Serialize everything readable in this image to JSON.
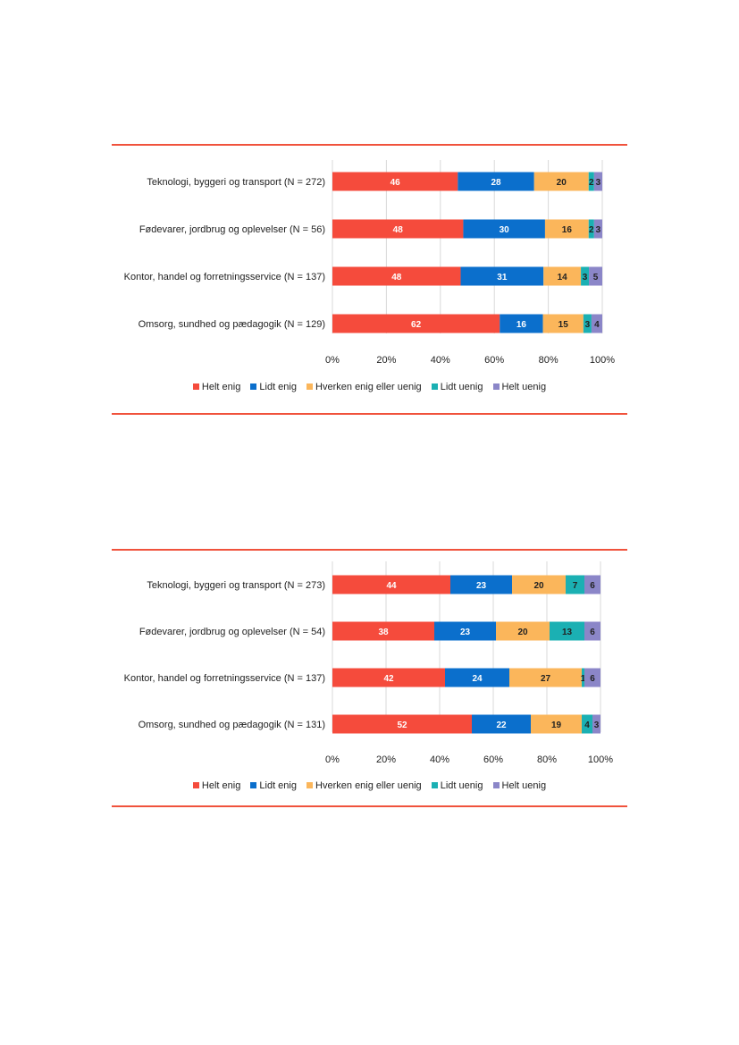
{
  "legend": [
    {
      "label": "Helt enig",
      "color": "#f54b3c"
    },
    {
      "label": "Lidt enig",
      "color": "#0b6fcc"
    },
    {
      "label": "Hverken enig eller uenig",
      "color": "#fbb65b"
    },
    {
      "label": "Lidt uenig",
      "color": "#1bb0b3"
    },
    {
      "label": "Helt uenig",
      "color": "#8b86c8"
    }
  ],
  "chart_data": [
    {
      "type": "bar",
      "orientation": "horizontal",
      "stacked": true,
      "categories": [
        "Teknologi, byggeri og transport (N = 272)",
        "Fødevarer, jordbrug og oplevelser (N = 56)",
        "Kontor, handel og forretningsservice (N = 137)",
        "Omsorg, sundhed og pædagogik (N = 129)"
      ],
      "series": [
        {
          "name": "Helt enig",
          "values": [
            46,
            48,
            48,
            62
          ]
        },
        {
          "name": "Lidt enig",
          "values": [
            28,
            30,
            31,
            16
          ]
        },
        {
          "name": "Hverken enig eller uenig",
          "values": [
            20,
            16,
            14,
            15
          ]
        },
        {
          "name": "Lidt uenig",
          "values": [
            2,
            2,
            3,
            3
          ]
        },
        {
          "name": "Helt uenig",
          "values": [
            3,
            3,
            5,
            4
          ]
        }
      ],
      "xlim": [
        0,
        100
      ],
      "xticks": [
        "0%",
        "20%",
        "40%",
        "60%",
        "80%",
        "100%"
      ],
      "grid": "vertical",
      "legend_position": "bottom"
    },
    {
      "type": "bar",
      "orientation": "horizontal",
      "stacked": true,
      "categories": [
        "Teknologi, byggeri og transport (N = 273)",
        "Fødevarer, jordbrug og oplevelser (N = 54)",
        "Kontor, handel og forretningsservice (N = 137)",
        "Omsorg, sundhed og pædagogik (N = 131)"
      ],
      "series": [
        {
          "name": "Helt enig",
          "values": [
            44,
            38,
            42,
            52
          ]
        },
        {
          "name": "Lidt enig",
          "values": [
            23,
            23,
            24,
            22
          ]
        },
        {
          "name": "Hverken enig eller uenig",
          "values": [
            20,
            20,
            27,
            19
          ]
        },
        {
          "name": "Lidt uenig",
          "values": [
            7,
            13,
            1,
            4
          ]
        },
        {
          "name": "Helt uenig",
          "values": [
            6,
            6,
            6,
            3
          ]
        }
      ],
      "xlim": [
        0,
        100
      ],
      "xticks": [
        "0%",
        "20%",
        "40%",
        "60%",
        "80%",
        "100%"
      ],
      "grid": "vertical",
      "legend_position": "bottom"
    }
  ]
}
